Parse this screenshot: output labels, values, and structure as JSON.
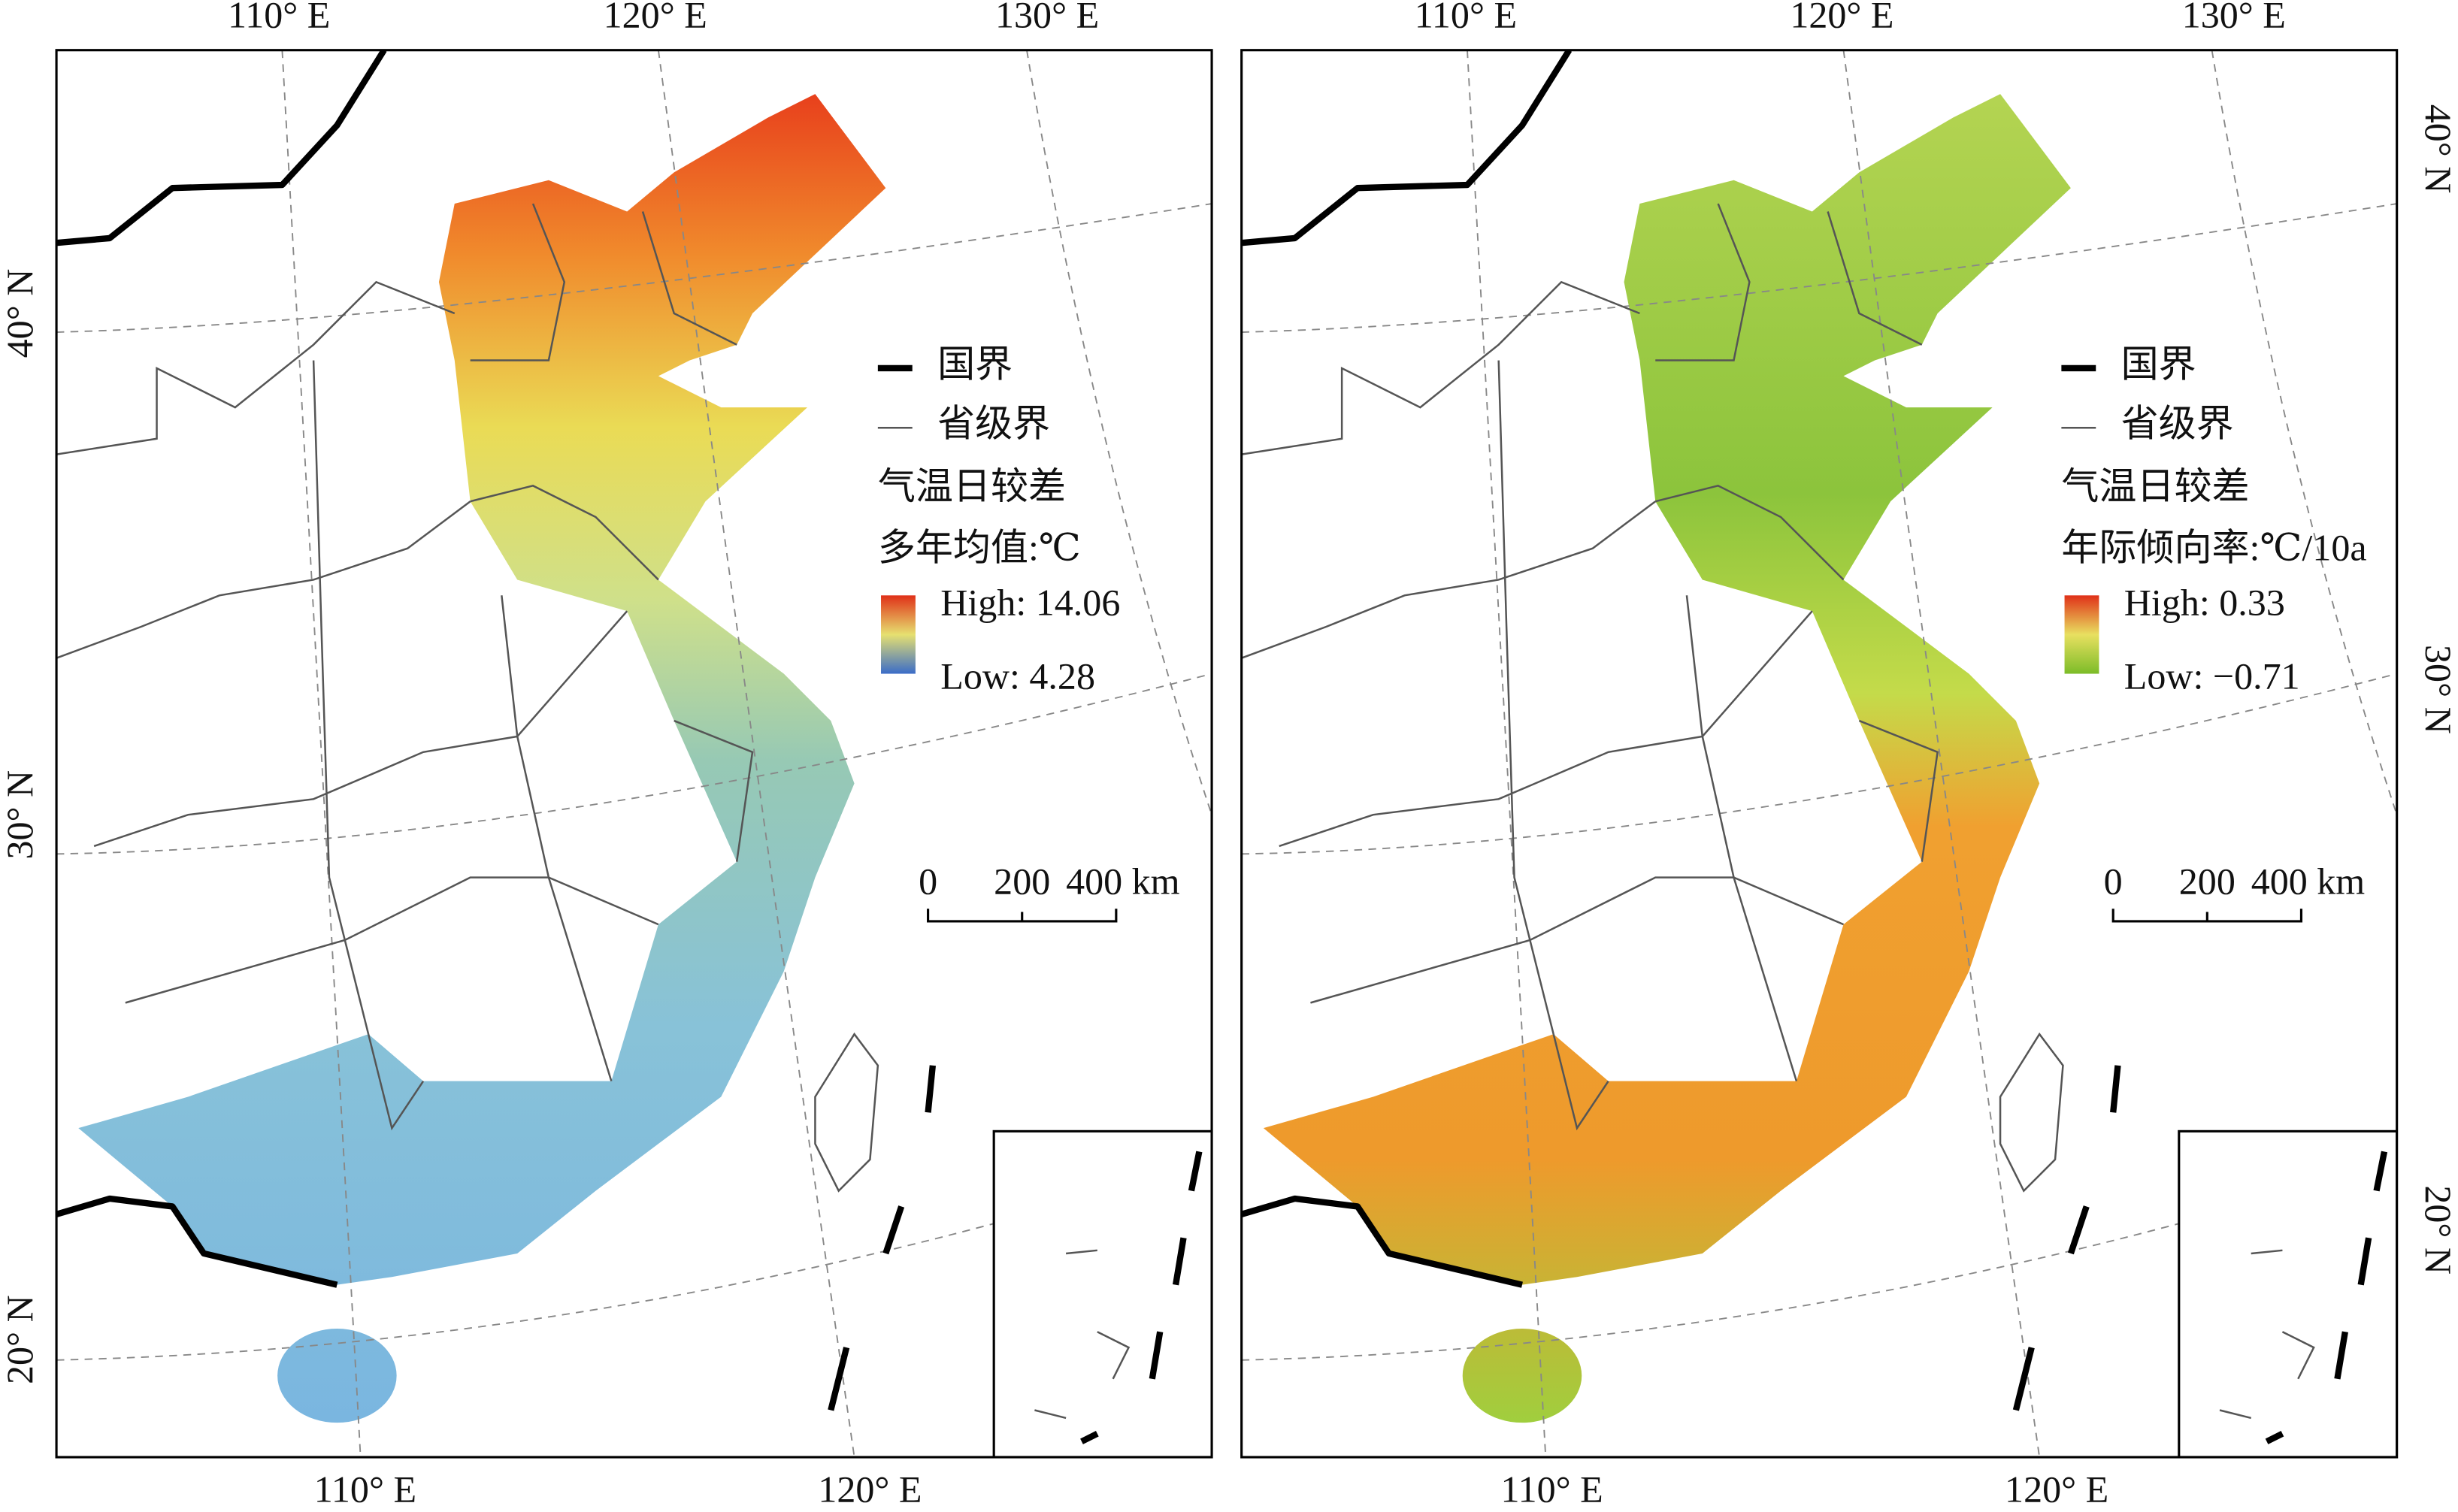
{
  "panels": [
    {
      "top_labels": [
        "110° E",
        "120° E",
        "130° E"
      ],
      "bottom_labels": [
        "110° E",
        "120° E"
      ],
      "side_labels": [
        "40° N",
        "30° N",
        "20° N"
      ],
      "legend": {
        "border": "国界",
        "province": "省级界",
        "title": "气温日较差",
        "subtitle": "多年均值:℃",
        "high": "High: 14.06",
        "low": "Low: 4.28"
      },
      "scale": [
        "0",
        "200",
        "400 km"
      ]
    },
    {
      "top_labels": [
        "110° E",
        "120° E",
        "130° E"
      ],
      "bottom_labels": [
        "110° E",
        "120° E"
      ],
      "side_labels": [
        "40° N",
        "30° N",
        "20° N"
      ],
      "legend": {
        "border": "国界",
        "province": "省级界",
        "title": "气温日较差",
        "subtitle": "年际倾向率:℃/10a",
        "high": "High: 0.33",
        "low": "Low: −0.71"
      },
      "scale": [
        "0",
        "200",
        "400 km"
      ]
    }
  ]
}
